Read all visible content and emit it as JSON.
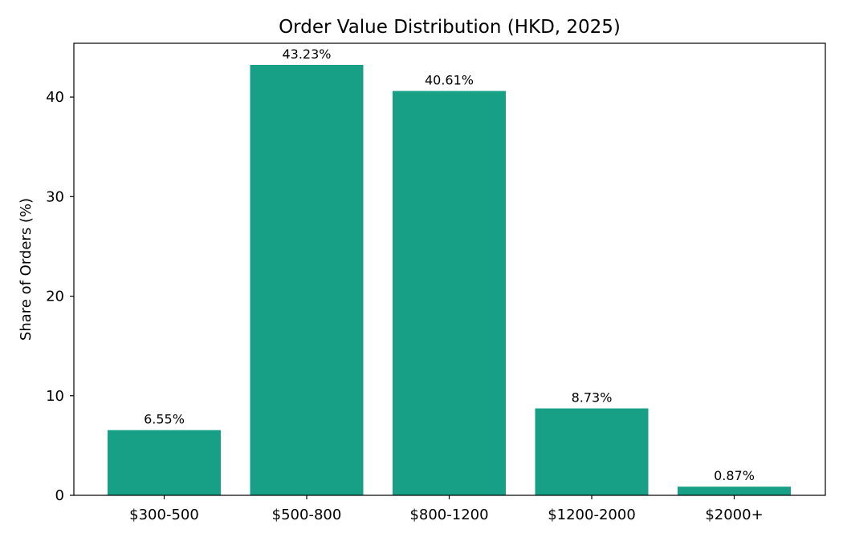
{
  "chart_data": {
    "type": "bar",
    "title": "Order Value Distribution (HKD, 2025)",
    "xlabel": "",
    "ylabel": "Share of Orders (%)",
    "categories": [
      "$300-500",
      "$500-800",
      "$800-1200",
      "$1200-2000",
      "$2000+"
    ],
    "values": [
      6.55,
      43.23,
      40.61,
      8.73,
      0.87
    ],
    "data_labels": [
      "6.55%",
      "43.23%",
      "40.61%",
      "8.73%",
      "0.87%"
    ],
    "ylim": [
      0,
      45.4
    ],
    "yticks": [
      0,
      10,
      20,
      30,
      40
    ],
    "bar_color": "#17a085",
    "grid": false,
    "legend": "none"
  }
}
